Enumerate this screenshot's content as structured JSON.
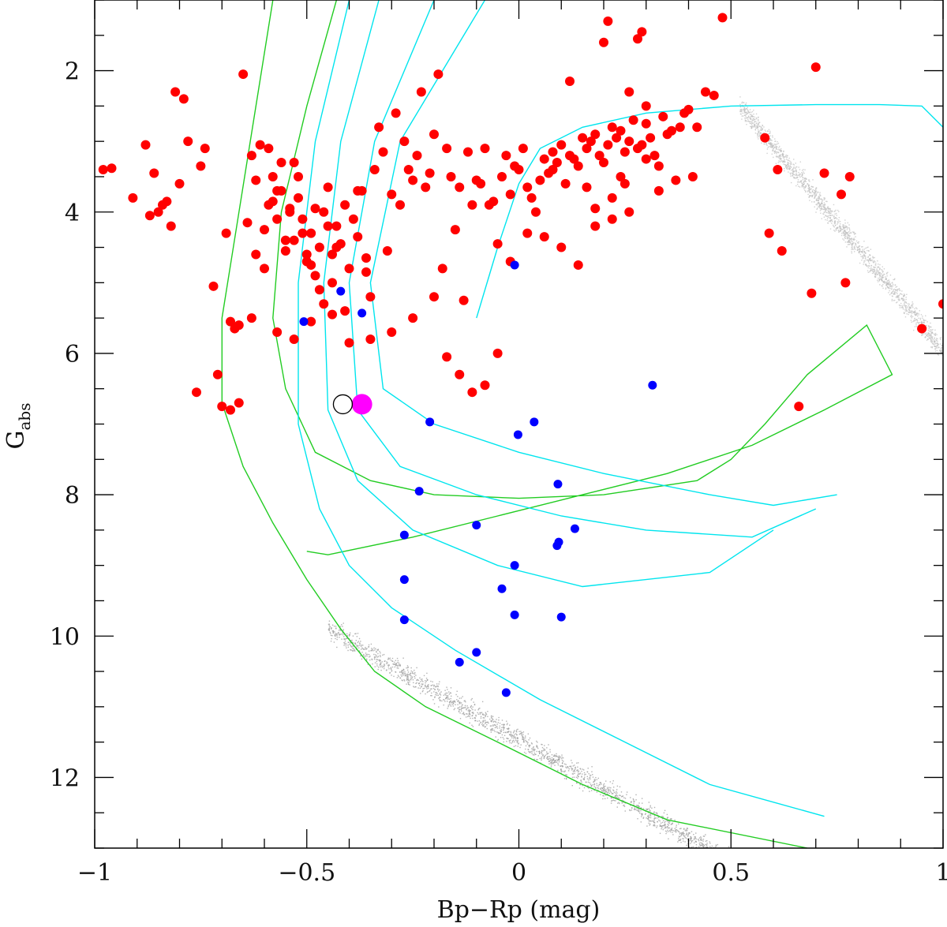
{
  "chart_data": {
    "type": "scatter",
    "title": "",
    "xlabel": "Bp−Rp (mag)",
    "ylabel_main": "G",
    "ylabel_sub": "abs",
    "xlim": [
      -1,
      1
    ],
    "ylim": [
      13,
      1
    ],
    "y_inverted": true,
    "xticks": [
      -1,
      -0.5,
      0,
      0.5,
      1
    ],
    "xtick_labels": [
      "−1",
      "−0.5",
      "0",
      "0.5",
      "1"
    ],
    "yticks": [
      2,
      4,
      6,
      8,
      10,
      12
    ],
    "ytick_labels": [
      "2",
      "4",
      "6",
      "8",
      "10",
      "12"
    ],
    "grid": false,
    "legend": "none",
    "colors": {
      "red_stars": "#ff0000",
      "blue_stars": "#0000ff",
      "target_star": "#ff00ff",
      "track_cyan": "#00e5ee",
      "isochrone_green": "#22cc22",
      "background_field": "#9a9a9a"
    },
    "series": [
      {
        "marker": "filled-circle",
        "color": "#ff0000",
        "x": [
          -0.98,
          -0.96,
          -0.91,
          -0.88,
          -0.87,
          -0.86,
          -0.85,
          -0.84,
          -0.83,
          -0.82,
          -0.81,
          -0.8,
          -0.79,
          -0.78,
          -0.76,
          -0.75,
          -0.74,
          -0.72,
          -0.71,
          -0.7,
          -0.69,
          -0.68,
          -0.67,
          -0.66,
          -0.65,
          -0.64,
          -0.63,
          -0.62,
          -0.61,
          -0.6,
          -0.59,
          -0.58,
          -0.57,
          -0.56,
          -0.55,
          -0.54,
          -0.53,
          -0.52,
          -0.51,
          -0.5,
          -0.49,
          -0.48,
          -0.47,
          -0.46,
          -0.45,
          -0.44,
          -0.43,
          -0.42,
          -0.41,
          -0.4,
          -0.39,
          -0.38,
          -0.37,
          -0.36,
          -0.35,
          -0.34,
          -0.33,
          -0.32,
          -0.31,
          -0.3,
          -0.29,
          -0.28,
          -0.27,
          -0.26,
          -0.25,
          -0.24,
          -0.23,
          -0.22,
          -0.21,
          -0.2,
          -0.19,
          -0.18,
          -0.17,
          -0.16,
          -0.15,
          -0.14,
          -0.13,
          -0.12,
          -0.11,
          -0.1,
          -0.09,
          -0.08,
          -0.07,
          -0.06,
          -0.05,
          -0.04,
          -0.03,
          -0.02,
          -0.01,
          0.0,
          0.01,
          0.02,
          0.03,
          0.04,
          0.05,
          0.06,
          0.07,
          0.08,
          0.09,
          0.1,
          0.11,
          0.12,
          0.13,
          0.14,
          0.15,
          0.16,
          0.17,
          0.18,
          0.19,
          0.2,
          0.21,
          0.22,
          0.23,
          0.24,
          0.25,
          0.26,
          0.27,
          0.28,
          0.29,
          0.3,
          0.31,
          0.32,
          0.33,
          0.34,
          0.35,
          0.36,
          0.37,
          0.38,
          0.39,
          0.4,
          0.41,
          0.42,
          0.44,
          0.46,
          0.48,
          0.58,
          0.59,
          0.61,
          0.62,
          0.66,
          0.69,
          0.7,
          0.72,
          0.76,
          0.77,
          0.78,
          0.95,
          1.0,
          -0.52,
          -0.55,
          -0.6,
          -0.57,
          -0.5,
          -0.45,
          -0.48,
          -0.53,
          -0.56,
          -0.47,
          -0.43,
          -0.58,
          -0.51,
          -0.54,
          -0.46,
          -0.49,
          -0.44,
          -0.59,
          -0.62,
          -0.41,
          -0.38,
          -0.63,
          -0.36,
          -0.66,
          -0.68,
          -0.57,
          -0.53,
          -0.49,
          -0.44,
          -0.4,
          -0.35,
          -0.3,
          -0.25,
          -0.2,
          -0.17,
          -0.14,
          -0.11,
          -0.08,
          -0.05,
          -0.02,
          0.02,
          0.06,
          0.1,
          0.14,
          0.18,
          0.22,
          0.26,
          0.3,
          0.12,
          0.2,
          0.28,
          0.33,
          0.24,
          0.16,
          0.08,
          0.3,
          0.26,
          0.22,
          0.18,
          0.25,
          0.29,
          0.21
        ],
        "y": [
          3.4,
          3.38,
          3.8,
          3.05,
          4.05,
          3.45,
          4.0,
          3.9,
          3.85,
          4.2,
          2.3,
          3.6,
          2.4,
          3.0,
          6.55,
          3.35,
          3.1,
          5.05,
          6.3,
          6.75,
          4.3,
          6.8,
          5.65,
          6.7,
          2.05,
          4.15,
          3.2,
          3.55,
          3.05,
          4.25,
          3.9,
          3.5,
          3.7,
          3.3,
          4.55,
          4.0,
          4.4,
          3.8,
          4.1,
          4.7,
          4.3,
          3.95,
          4.5,
          4.0,
          3.65,
          4.6,
          4.2,
          4.45,
          3.9,
          4.8,
          4.1,
          4.35,
          3.7,
          4.65,
          5.2,
          3.4,
          2.8,
          3.15,
          4.55,
          3.75,
          2.6,
          3.9,
          3.0,
          3.4,
          3.55,
          3.2,
          2.3,
          3.65,
          3.45,
          2.9,
          2.05,
          4.8,
          3.1,
          3.5,
          4.25,
          3.65,
          5.25,
          3.15,
          3.9,
          3.55,
          3.6,
          3.1,
          3.9,
          3.85,
          4.45,
          3.5,
          3.2,
          3.75,
          3.35,
          3.4,
          3.1,
          3.65,
          3.8,
          4.0,
          3.55,
          3.25,
          3.45,
          3.15,
          3.3,
          3.05,
          3.6,
          3.2,
          3.25,
          3.35,
          2.95,
          3.1,
          3.0,
          2.9,
          3.2,
          3.3,
          3.05,
          2.8,
          2.95,
          2.85,
          3.15,
          3.0,
          2.7,
          3.1,
          3.05,
          2.75,
          2.95,
          3.2,
          3.35,
          2.65,
          2.9,
          2.85,
          3.55,
          2.8,
          2.6,
          2.55,
          3.5,
          2.8,
          2.3,
          2.35,
          1.25,
          2.95,
          4.3,
          3.4,
          4.55,
          6.75,
          5.15,
          1.95,
          3.45,
          3.75,
          5.0,
          3.5,
          5.65,
          5.3,
          3.5,
          4.4,
          4.8,
          4.1,
          4.6,
          4.2,
          4.9,
          3.3,
          3.7,
          5.1,
          4.5,
          3.85,
          4.3,
          3.95,
          5.3,
          4.75,
          5.0,
          3.1,
          4.6,
          5.4,
          3.7,
          5.5,
          4.85,
          5.6,
          5.55,
          5.7,
          5.8,
          5.55,
          5.45,
          5.85,
          5.8,
          5.7,
          5.5,
          5.2,
          6.05,
          6.3,
          6.55,
          6.45,
          6.0,
          4.7,
          4.3,
          4.35,
          4.5,
          4.75,
          4.2,
          4.1,
          2.3,
          2.5,
          2.15,
          1.6,
          1.55,
          3.7,
          3.5,
          3.65,
          3.4,
          3.25,
          4.0,
          3.8,
          3.95,
          3.6,
          1.45,
          1.3
        ]
      },
      {
        "marker": "filled-circle",
        "color": "#0000ff",
        "x": [
          -0.507,
          -0.42,
          -0.37,
          -0.01,
          0.315,
          -0.21,
          -0.002,
          0.036,
          -0.235,
          0.092,
          -0.1,
          0.132,
          -0.27,
          0.094,
          0.09,
          -0.01,
          -0.27,
          -0.04,
          -0.01,
          0.1,
          -0.27,
          -0.1,
          -0.14,
          -0.03
        ],
        "y": [
          5.55,
          5.12,
          5.43,
          4.75,
          6.45,
          6.97,
          7.15,
          6.97,
          7.95,
          7.85,
          8.43,
          8.48,
          8.57,
          8.67,
          8.72,
          9.0,
          9.2,
          9.33,
          9.7,
          9.73,
          9.77,
          10.23,
          10.37,
          10.8
        ]
      },
      {
        "marker": "filled-circle-large",
        "color": "#ff00ff",
        "x": [
          -0.37
        ],
        "y": [
          6.72
        ]
      },
      {
        "marker": "open-circle",
        "color": "#000000",
        "x": [
          -0.415
        ],
        "y": [
          6.72
        ]
      }
    ],
    "lines": [
      {
        "color": "#22cc22",
        "x": [
          -0.58,
          -0.62,
          -0.66,
          -0.7,
          -0.7,
          -0.65,
          -0.58,
          -0.5,
          -0.42,
          -0.34,
          -0.22,
          -0.05,
          0.15,
          0.35,
          0.68
        ],
        "y": [
          1.0,
          2.5,
          4.0,
          5.5,
          6.7,
          7.6,
          8.4,
          9.2,
          9.9,
          10.5,
          11.0,
          11.5,
          12.1,
          12.6,
          13.0
        ]
      },
      {
        "color": "#22cc22",
        "x": [
          -0.43,
          -0.5,
          -0.56,
          -0.58,
          -0.55,
          -0.48,
          -0.35,
          -0.2,
          0.0,
          0.2,
          0.42,
          0.5,
          0.58,
          0.68,
          0.82,
          0.88,
          0.72,
          0.55,
          0.35,
          0.15,
          -0.05,
          -0.25,
          -0.45,
          -0.5
        ],
        "y": [
          1.0,
          2.5,
          4.0,
          5.5,
          6.5,
          7.4,
          7.8,
          8.0,
          8.05,
          8.0,
          7.8,
          7.5,
          7.0,
          6.3,
          5.6,
          6.3,
          6.8,
          7.3,
          7.7,
          8.0,
          8.3,
          8.6,
          8.85,
          8.8
        ]
      },
      {
        "color": "#00e5ee",
        "x": [
          -0.4,
          -0.48,
          -0.52,
          -0.52,
          -0.47,
          -0.4,
          -0.3,
          -0.15,
          0.05,
          0.25,
          0.45,
          0.72
        ],
        "y": [
          1.0,
          3.0,
          5.0,
          7.0,
          8.2,
          9.0,
          9.6,
          10.2,
          10.9,
          11.5,
          12.1,
          12.55
        ]
      },
      {
        "color": "#00e5ee",
        "x": [
          -0.33,
          -0.42,
          -0.46,
          -0.45,
          -0.38,
          -0.25,
          -0.05,
          0.15,
          0.45,
          0.6
        ],
        "y": [
          1.0,
          3.0,
          5.0,
          6.8,
          7.8,
          8.5,
          9.0,
          9.3,
          9.1,
          8.5
        ]
      },
      {
        "color": "#00e5ee",
        "x": [
          -0.2,
          -0.34,
          -0.4,
          -0.38,
          -0.28,
          -0.1,
          0.1,
          0.3,
          0.55,
          0.7
        ],
        "y": [
          1.0,
          3.0,
          5.0,
          6.8,
          7.6,
          8.0,
          8.3,
          8.5,
          8.6,
          8.2
        ]
      },
      {
        "color": "#00e5ee",
        "x": [
          -0.08,
          -0.28,
          -0.35,
          -0.32,
          -0.2,
          0.0,
          0.2,
          0.45,
          0.6,
          0.75
        ],
        "y": [
          1.0,
          3.0,
          5.0,
          6.5,
          7.0,
          7.4,
          7.7,
          8.0,
          8.15,
          8.0
        ]
      },
      {
        "color": "#00e5ee",
        "x": [
          1.0,
          0.95,
          0.85,
          0.7,
          0.5,
          0.3,
          0.15,
          0.05,
          0.0,
          -0.05,
          -0.1
        ],
        "y": [
          2.8,
          2.5,
          2.48,
          2.48,
          2.5,
          2.6,
          2.8,
          3.1,
          3.6,
          4.5,
          5.5
        ]
      }
    ]
  }
}
